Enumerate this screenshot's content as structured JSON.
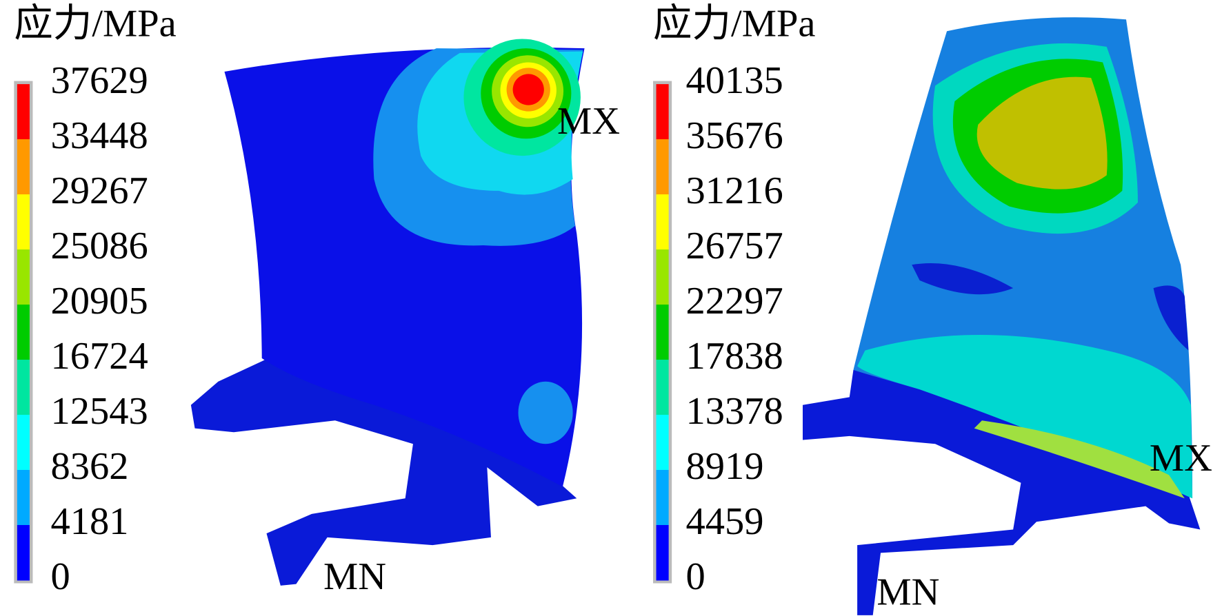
{
  "panels": [
    {
      "unit_label": "应力/MPa",
      "levels": [
        37629,
        33448,
        29267,
        25086,
        20905,
        16724,
        12543,
        8362,
        4181,
        0
      ],
      "max_marker": "MX",
      "min_marker": "MN"
    },
    {
      "unit_label": "应力/MPa",
      "levels": [
        40135,
        35676,
        31216,
        26757,
        22297,
        17838,
        13378,
        8919,
        4459,
        0
      ],
      "max_marker": "MX",
      "min_marker": "MN"
    }
  ],
  "band_colors": [
    "#ff0000",
    "#ff9900",
    "#ffff00",
    "#99e600",
    "#00cc00",
    "#00e6a0",
    "#00ffff",
    "#00aaff",
    "#0000ff"
  ]
}
